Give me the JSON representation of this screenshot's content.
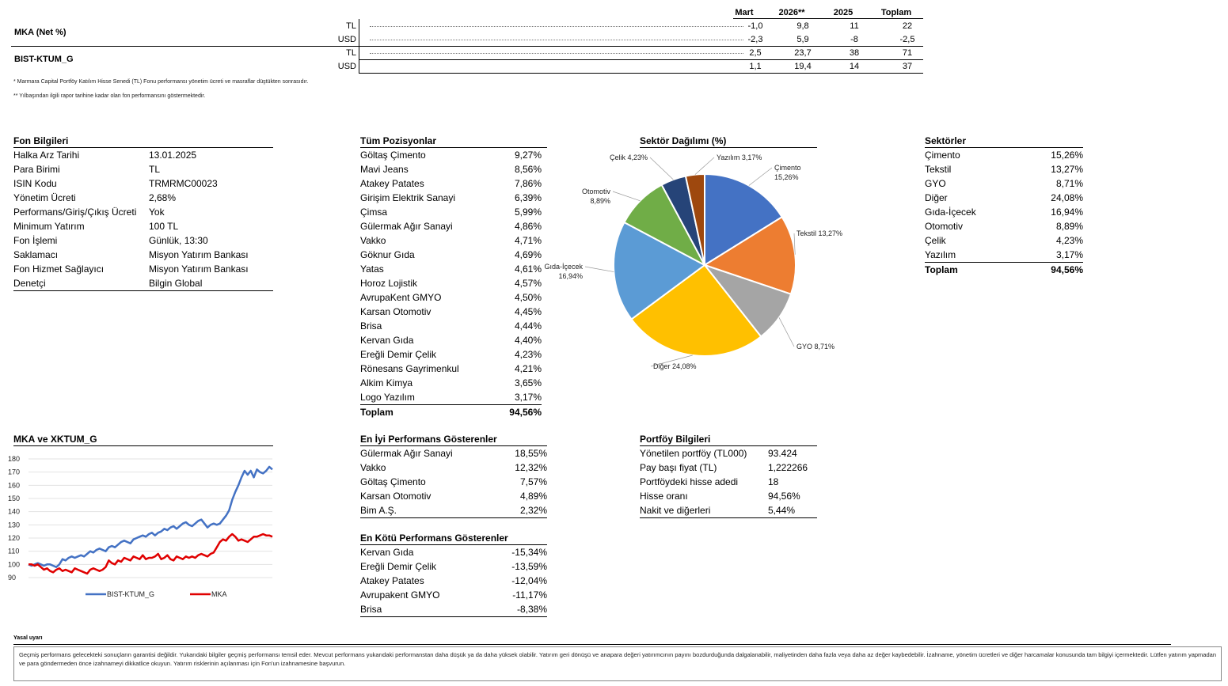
{
  "performance": {
    "headers": [
      "Mart",
      "2026**",
      "2025",
      "Toplam"
    ],
    "funds": [
      {
        "name": "MKA (Net %)",
        "rows": [
          {
            "currency": "TL",
            "values": [
              "-1,0",
              "9,8",
              "11",
              "22"
            ]
          },
          {
            "currency": "USD",
            "values": [
              "-2,3",
              "5,9",
              "-8",
              "-2,5"
            ]
          }
        ]
      },
      {
        "name": "BIST-KTUM_G",
        "rows": [
          {
            "currency": "TL",
            "values": [
              "2,5",
              "23,7",
              "38",
              "71"
            ]
          },
          {
            "currency": "USD",
            "values": [
              "1,1",
              "19,4",
              "14",
              "37"
            ]
          }
        ]
      }
    ],
    "footnote1": "* Marmara Capital Portföy Katılım Hisse Senedi (TL) Fonu performansı yönetim ücreti ve masraflar düştükten sonrasıdır.",
    "footnote2": "** Yılbaşından ilgili rapor tarihine kadar olan fon performansını göstermektedir."
  },
  "fund_info": {
    "title": "Fon Bilgileri",
    "items": [
      {
        "k": "Halka Arz Tarihi",
        "v": "13.01.2025"
      },
      {
        "k": "Para Birimi",
        "v": "TL"
      },
      {
        "k": "ISIN Kodu",
        "v": "TRMRMC00023"
      },
      {
        "k": "Yönetim Ücreti",
        "v": "2,68%"
      },
      {
        "k": "Performans/Giriş/Çıkış Ücreti",
        "v": "Yok"
      },
      {
        "k": "Minimum Yatırım",
        "v": "100 TL"
      },
      {
        "k": "Fon İşlemi",
        "v": "Günlük, 13:30"
      },
      {
        "k": "Saklamacı",
        "v": "Misyon Yatırım Bankası"
      },
      {
        "k": "Fon Hizmet Sağlayıcı",
        "v": "Misyon Yatırım Bankası"
      },
      {
        "k": "Denetçi",
        "v": "Bilgin Global"
      }
    ]
  },
  "positions": {
    "title": "Tüm Pozisyonlar",
    "items": [
      {
        "k": "Göltaş Çimento",
        "v": "9,27%"
      },
      {
        "k": "Mavi Jeans",
        "v": "8,56%"
      },
      {
        "k": "Atakey Patates",
        "v": "7,86%"
      },
      {
        "k": "Girişim Elektrik Sanayi",
        "v": "6,39%"
      },
      {
        "k": "Çimsa",
        "v": "5,99%"
      },
      {
        "k": "Gülermak Ağır Sanayi",
        "v": "4,86%"
      },
      {
        "k": "Vakko",
        "v": "4,71%"
      },
      {
        "k": "Göknur Gıda",
        "v": "4,69%"
      },
      {
        "k": "Yatas",
        "v": "4,61%"
      },
      {
        "k": "Horoz Lojistik",
        "v": "4,57%"
      },
      {
        "k": "AvrupaKent GMYO",
        "v": "4,50%"
      },
      {
        "k": "Karsan Otomotiv",
        "v": "4,45%"
      },
      {
        "k": "Brisa",
        "v": "4,44%"
      },
      {
        "k": "Kervan Gıda",
        "v": "4,40%"
      },
      {
        "k": "Ereğli Demir Çelik",
        "v": "4,23%"
      },
      {
        "k": "Rönesans Gayrimenkul",
        "v": "4,21%"
      },
      {
        "k": "Alkim Kimya",
        "v": "3,65%"
      },
      {
        "k": "Logo Yazılım",
        "v": "3,17%"
      }
    ],
    "total_label": "Toplam",
    "total_value": "94,56%"
  },
  "sector_chart": {
    "title": "Sektör Dağılımı (%)",
    "slices": [
      {
        "name": "Çimento",
        "label": "Çimento\n15,26%",
        "value": 15.26,
        "color": "#4472C4"
      },
      {
        "name": "Tekstil",
        "label": "Tekstil 13,27%",
        "value": 13.27,
        "color": "#ED7D31"
      },
      {
        "name": "GYO",
        "label": "GYO 8,71%",
        "value": 8.71,
        "color": "#A5A5A5"
      },
      {
        "name": "Diğer",
        "label": "Diğer 24,08%",
        "value": 24.08,
        "color": "#FFC000"
      },
      {
        "name": "Gıda-İçecek",
        "label": "Gıda-İçecek\n16,94%",
        "value": 16.94,
        "color": "#5B9BD5"
      },
      {
        "name": "Otomotiv",
        "label": "Otomotiv\n8,89%",
        "value": 8.89,
        "color": "#70AD47"
      },
      {
        "name": "Çelik",
        "label": "Çelik 4,23%",
        "value": 4.23,
        "color": "#264478"
      },
      {
        "name": "Yazılım",
        "label": "Yazılım 3,17%",
        "value": 3.17,
        "color": "#9E480E"
      }
    ]
  },
  "sectors": {
    "title": "Sektörler",
    "items": [
      {
        "k": "Çimento",
        "v": "15,26%"
      },
      {
        "k": "Tekstil",
        "v": "13,27%"
      },
      {
        "k": "GYO",
        "v": "8,71%"
      },
      {
        "k": "Diğer",
        "v": "24,08%"
      },
      {
        "k": "Gıda-İçecek",
        "v": "16,94%"
      },
      {
        "k": "Otomotiv",
        "v": "8,89%"
      },
      {
        "k": "Çelik",
        "v": "4,23%"
      },
      {
        "k": "Yazılım",
        "v": "3,17%"
      }
    ],
    "total_label": "Toplam",
    "total_value": "94,56%"
  },
  "best": {
    "title": "En İyi Performans Gösterenler",
    "items": [
      {
        "k": "Gülermak Ağır Sanayi",
        "v": "18,55%"
      },
      {
        "k": "Vakko",
        "v": "12,32%"
      },
      {
        "k": "Göltaş Çimento",
        "v": "7,57%"
      },
      {
        "k": "Karsan Otomotiv",
        "v": "4,89%"
      },
      {
        "k": "Bim A.Ş.",
        "v": "2,32%"
      }
    ]
  },
  "worst": {
    "title": "En Kötü Performans Gösterenler",
    "items": [
      {
        "k": "Kervan Gıda",
        "v": "-15,34%"
      },
      {
        "k": "Ereğli Demir Çelik",
        "v": "-13,59%"
      },
      {
        "k": "Atakey Patates",
        "v": "-12,04%"
      },
      {
        "k": "Avrupakent GMYO",
        "v": "-11,17%"
      },
      {
        "k": "Brisa",
        "v": "-8,38%"
      }
    ]
  },
  "portfolio": {
    "title": "Portföy Bilgileri",
    "items": [
      {
        "k": "Yönetilen portföy (TL000)",
        "v": "93.424"
      },
      {
        "k": "Pay başı fiyat (TL)",
        "v": "1,222266"
      },
      {
        "k": "Portföydeki hisse adedi",
        "v": "18"
      },
      {
        "k": "Hisse oranı",
        "v": "94,56%"
      },
      {
        "k": "Nakit ve diğerleri",
        "v": "5,44%"
      }
    ]
  },
  "line_chart": {
    "title": "MKA ve XKTUM_G",
    "ylim": [
      90,
      180
    ],
    "yticks": [
      180,
      170,
      160,
      150,
      140,
      130,
      120,
      110,
      100,
      90
    ],
    "series": [
      {
        "name": "BIST-KTUM_G",
        "color": "#4472C4",
        "values": [
          100,
          99,
          100,
          101,
          100,
          99,
          100,
          100,
          99,
          98,
          100,
          104,
          103,
          105,
          106,
          105,
          106,
          107,
          106,
          108,
          110,
          109,
          111,
          112,
          111,
          110,
          113,
          114,
          113,
          115,
          117,
          118,
          117,
          116,
          119,
          120,
          121,
          122,
          121,
          123,
          124,
          122,
          124,
          125,
          127,
          126,
          128,
          129,
          127,
          129,
          131,
          132,
          130,
          129,
          131,
          133,
          134,
          131,
          128,
          130,
          131,
          130,
          131,
          134,
          137,
          141,
          149,
          155,
          160,
          166,
          171,
          168,
          171,
          166,
          172,
          170,
          169,
          171,
          174,
          172
        ]
      },
      {
        "name": "MKA",
        "color": "#E00000",
        "values": [
          100,
          100,
          99,
          100,
          98,
          96,
          97,
          95,
          94,
          96,
          97,
          95,
          96,
          95,
          94,
          97,
          96,
          95,
          94,
          93,
          96,
          97,
          96,
          95,
          96,
          98,
          103,
          101,
          100,
          103,
          102,
          105,
          104,
          103,
          106,
          105,
          104,
          107,
          104,
          105,
          105,
          106,
          108,
          104,
          105,
          107,
          104,
          103,
          106,
          105,
          104,
          106,
          105,
          106,
          105,
          107,
          108,
          107,
          106,
          108,
          109,
          113,
          117,
          119,
          118,
          121,
          123,
          121,
          118,
          119,
          118,
          117,
          119,
          121,
          121,
          122,
          123,
          122,
          122,
          121
        ]
      }
    ]
  },
  "legal": {
    "title": "Yasal uyarı",
    "text": "Geçmiş performans gelecekteki sonuçların garantisi değildir. Yukarıdaki bilgiler geçmiş performansı temsil eder. Mevcut performans yukarıdaki performanstan daha düşük ya da daha yüksek olabilir. Yatırım geri dönüşü ve anapara değeri yatırımcının payını bozdurduğunda dalgalanabilir, maliyetinden daha fazla veya daha az değer kaybedebilir. İzahname, yönetim ücretleri ve diğer harcamalar konusunda tam bilgiyi içermektedir. Lütfen yatırım yapmadan ve para göndermeden önce izahnameyi dikkatlice okuyun.  Yatırım risklerinin açılanması için Fon'un izahnamesine başvurun."
  }
}
